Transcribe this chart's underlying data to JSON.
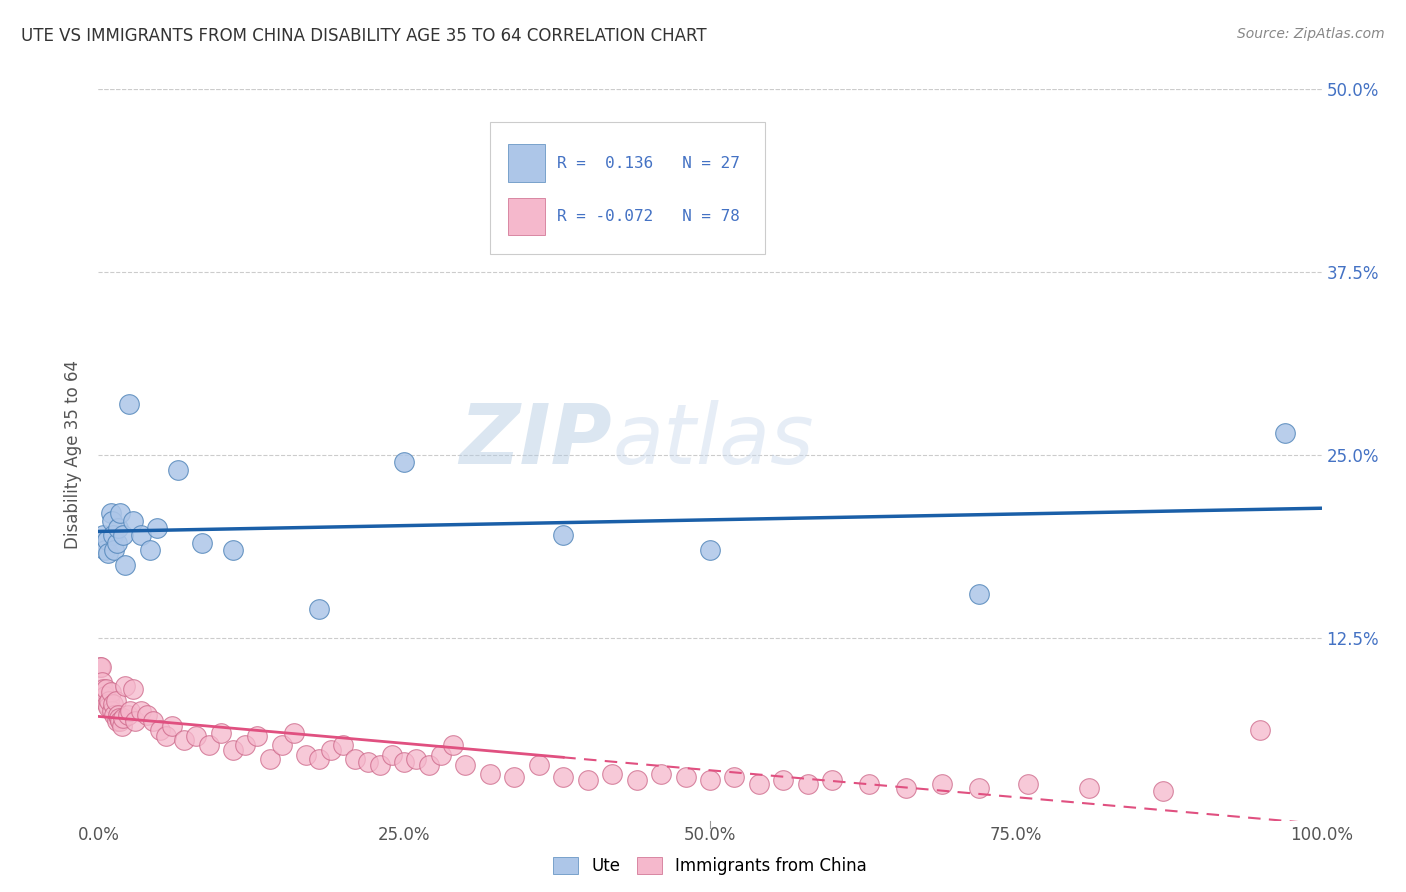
{
  "title": "UTE VS IMMIGRANTS FROM CHINA DISABILITY AGE 35 TO 64 CORRELATION CHART",
  "source": "Source: ZipAtlas.com",
  "ylabel": "Disability Age 35 to 64",
  "xlim": [
    0,
    1.0
  ],
  "ylim": [
    0,
    0.5
  ],
  "xticks": [
    0.0,
    0.25,
    0.5,
    0.75,
    1.0
  ],
  "xtick_labels": [
    "0.0%",
    "25.0%",
    "50.0%",
    "75.0%",
    "100.0%"
  ],
  "yticks": [
    0.0,
    0.125,
    0.25,
    0.375,
    0.5
  ],
  "ytick_labels": [
    "",
    "12.5%",
    "25.0%",
    "37.5%",
    "50.0%"
  ],
  "ute_R": 0.136,
  "ute_N": 27,
  "china_R": -0.072,
  "china_N": 78,
  "ute_color": "#adc6e8",
  "ute_edge_color": "#5588bb",
  "ute_line_color": "#1a5fa8",
  "china_color": "#f5b8cc",
  "china_edge_color": "#cc6688",
  "china_line_color": "#e05080",
  "watermark_text": "ZIPatlas",
  "ute_x": [
    0.004,
    0.005,
    0.007,
    0.008,
    0.01,
    0.011,
    0.012,
    0.013,
    0.015,
    0.016,
    0.018,
    0.02,
    0.022,
    0.025,
    0.028,
    0.035,
    0.042,
    0.048,
    0.065,
    0.085,
    0.11,
    0.18,
    0.25,
    0.38,
    0.5,
    0.72,
    0.97
  ],
  "ute_y": [
    0.195,
    0.185,
    0.192,
    0.183,
    0.21,
    0.205,
    0.195,
    0.185,
    0.19,
    0.2,
    0.21,
    0.195,
    0.175,
    0.285,
    0.205,
    0.195,
    0.185,
    0.2,
    0.24,
    0.19,
    0.185,
    0.145,
    0.245,
    0.195,
    0.185,
    0.155,
    0.265
  ],
  "china_x": [
    0.001,
    0.002,
    0.003,
    0.004,
    0.005,
    0.006,
    0.007,
    0.008,
    0.009,
    0.01,
    0.011,
    0.012,
    0.013,
    0.014,
    0.015,
    0.016,
    0.017,
    0.018,
    0.019,
    0.02,
    0.022,
    0.024,
    0.026,
    0.028,
    0.03,
    0.035,
    0.04,
    0.045,
    0.05,
    0.055,
    0.06,
    0.07,
    0.08,
    0.09,
    0.1,
    0.11,
    0.12,
    0.13,
    0.14,
    0.15,
    0.16,
    0.17,
    0.18,
    0.19,
    0.2,
    0.21,
    0.22,
    0.23,
    0.24,
    0.25,
    0.26,
    0.27,
    0.28,
    0.29,
    0.3,
    0.32,
    0.34,
    0.36,
    0.38,
    0.4,
    0.42,
    0.44,
    0.46,
    0.48,
    0.5,
    0.52,
    0.54,
    0.56,
    0.58,
    0.6,
    0.63,
    0.66,
    0.69,
    0.72,
    0.76,
    0.81,
    0.87,
    0.95
  ],
  "china_y": [
    0.105,
    0.105,
    0.095,
    0.09,
    0.085,
    0.09,
    0.08,
    0.078,
    0.082,
    0.088,
    0.075,
    0.08,
    0.072,
    0.082,
    0.068,
    0.072,
    0.07,
    0.068,
    0.065,
    0.07,
    0.092,
    0.072,
    0.075,
    0.09,
    0.068,
    0.075,
    0.072,
    0.068,
    0.062,
    0.058,
    0.065,
    0.055,
    0.058,
    0.052,
    0.06,
    0.048,
    0.052,
    0.058,
    0.042,
    0.052,
    0.06,
    0.045,
    0.042,
    0.048,
    0.052,
    0.042,
    0.04,
    0.038,
    0.045,
    0.04,
    0.042,
    0.038,
    0.045,
    0.052,
    0.038,
    0.032,
    0.03,
    0.038,
    0.03,
    0.028,
    0.032,
    0.028,
    0.032,
    0.03,
    0.028,
    0.03,
    0.025,
    0.028,
    0.025,
    0.028,
    0.025,
    0.022,
    0.025,
    0.022,
    0.025,
    0.022,
    0.02,
    0.062
  ]
}
